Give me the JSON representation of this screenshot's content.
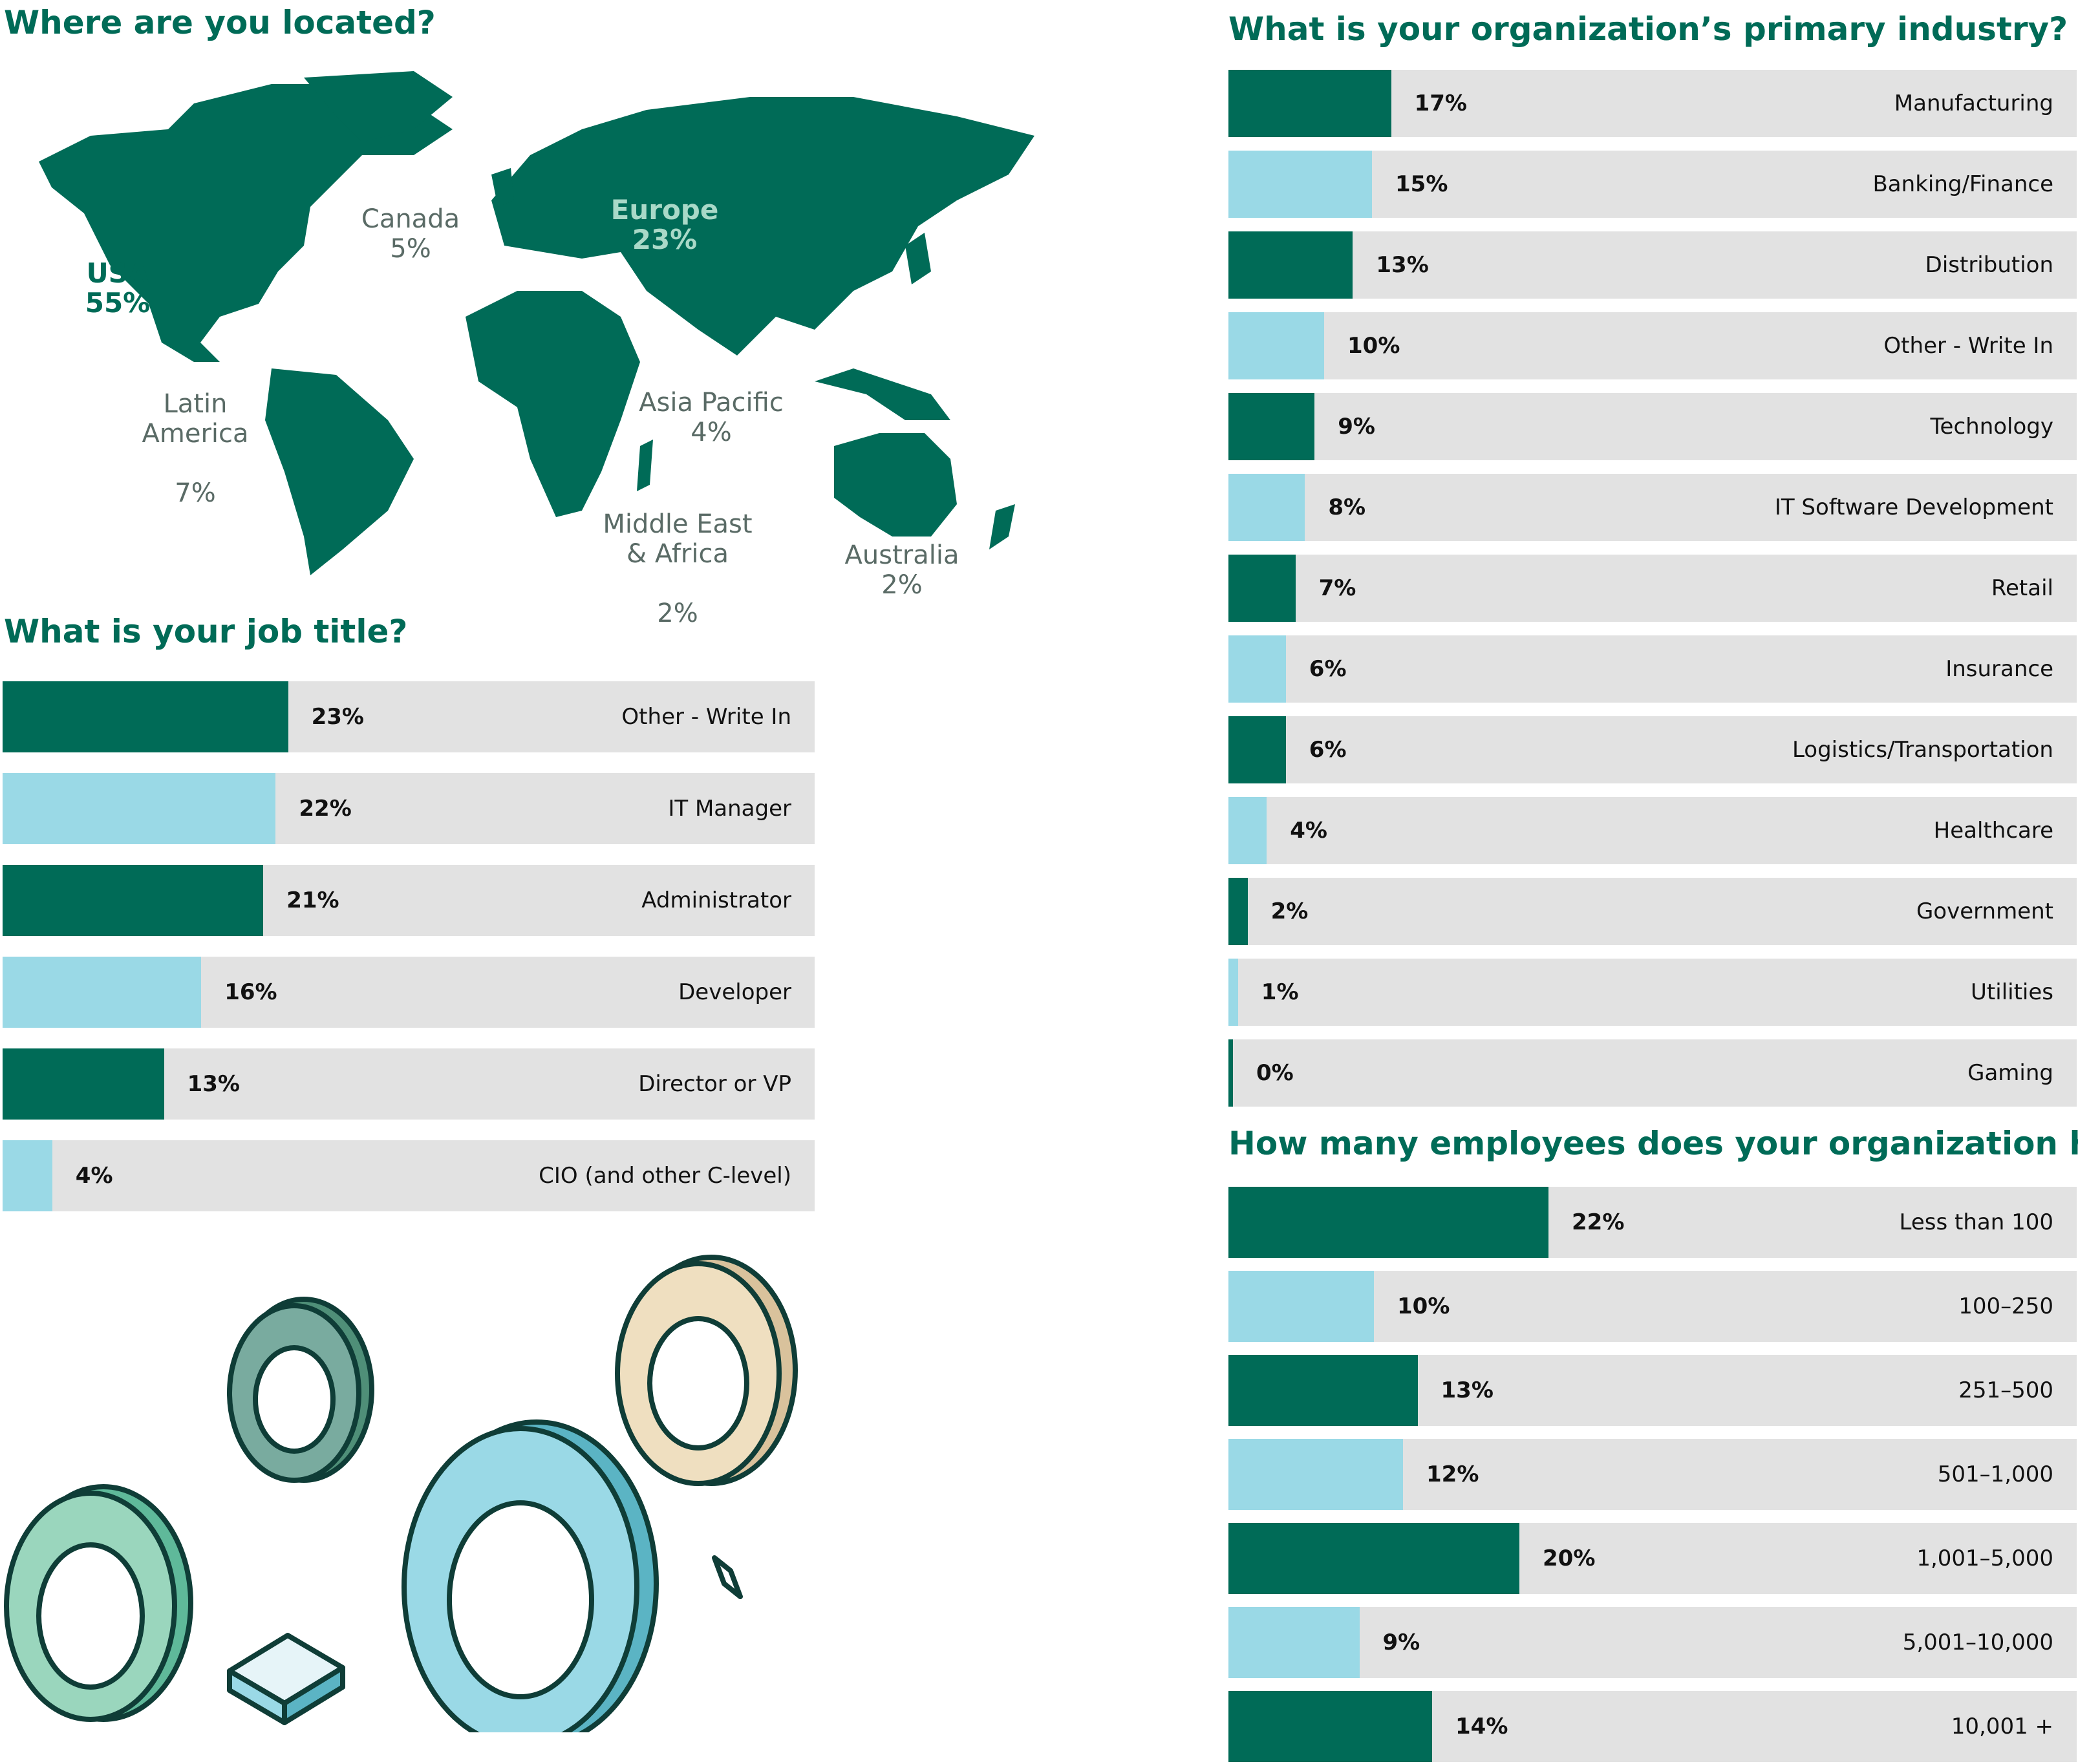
{
  "colors": {
    "dark": "#006b57",
    "light": "#9ad9e6",
    "track": "#e2e2e2",
    "heading": "#006b57"
  },
  "location": {
    "title": "Where are you located?",
    "regions": [
      {
        "id": "usa",
        "name": "USA",
        "value": "55%"
      },
      {
        "id": "canada",
        "name": "Canada",
        "value": "5%"
      },
      {
        "id": "europe",
        "name": "Europe",
        "value": "23%"
      },
      {
        "id": "latam",
        "name": "Latin\nAmerica",
        "value": "7%"
      },
      {
        "id": "apac",
        "name": "Asia Pacific",
        "value": "4%"
      },
      {
        "id": "mea",
        "name": "Middle East\n& Africa",
        "value": "2%"
      },
      {
        "id": "aus",
        "name": "Australia",
        "value": "2%"
      }
    ]
  },
  "chart_data": [
    {
      "type": "bar",
      "title": "What is your job title?",
      "categories": [
        "Other - Write In",
        "IT Manager",
        "Administrator",
        "Developer",
        "Director or VP",
        "CIO (and other C-level)"
      ],
      "values": [
        23,
        22,
        21,
        16,
        13,
        4
      ],
      "labels": [
        "23%",
        "22%",
        "21%",
        "16%",
        "13%",
        "4%"
      ]
    },
    {
      "type": "bar",
      "title": "What is your organization’s primary industry?",
      "categories": [
        "Manufacturing",
        "Banking/Finance",
        "Distribution",
        "Other - Write In",
        "Technology",
        "IT Software Development",
        "Retail",
        "Insurance",
        "Logistics/Transportation",
        "Healthcare",
        "Government",
        "Utilities",
        "Gaming"
      ],
      "values": [
        17,
        15,
        13,
        10,
        9,
        8,
        7,
        6,
        6,
        4,
        2,
        1,
        0
      ],
      "labels": [
        "17%",
        "15%",
        "13%",
        "10%",
        "9%",
        "8%",
        "7%",
        "6%",
        "6%",
        "4%",
        "2%",
        "1%",
        "0%"
      ]
    },
    {
      "type": "bar",
      "title": "How many employees does your organization have?",
      "categories": [
        "Less than 100",
        "100–250",
        "251–500",
        "501–1,000",
        "1,001–5,000",
        "5,001–10,000",
        "10,001 +"
      ],
      "values": [
        22,
        10,
        13,
        12,
        20,
        9,
        14
      ],
      "labels": [
        "22%",
        "10%",
        "13%",
        "12%",
        "20%",
        "9%",
        "14%"
      ]
    }
  ]
}
